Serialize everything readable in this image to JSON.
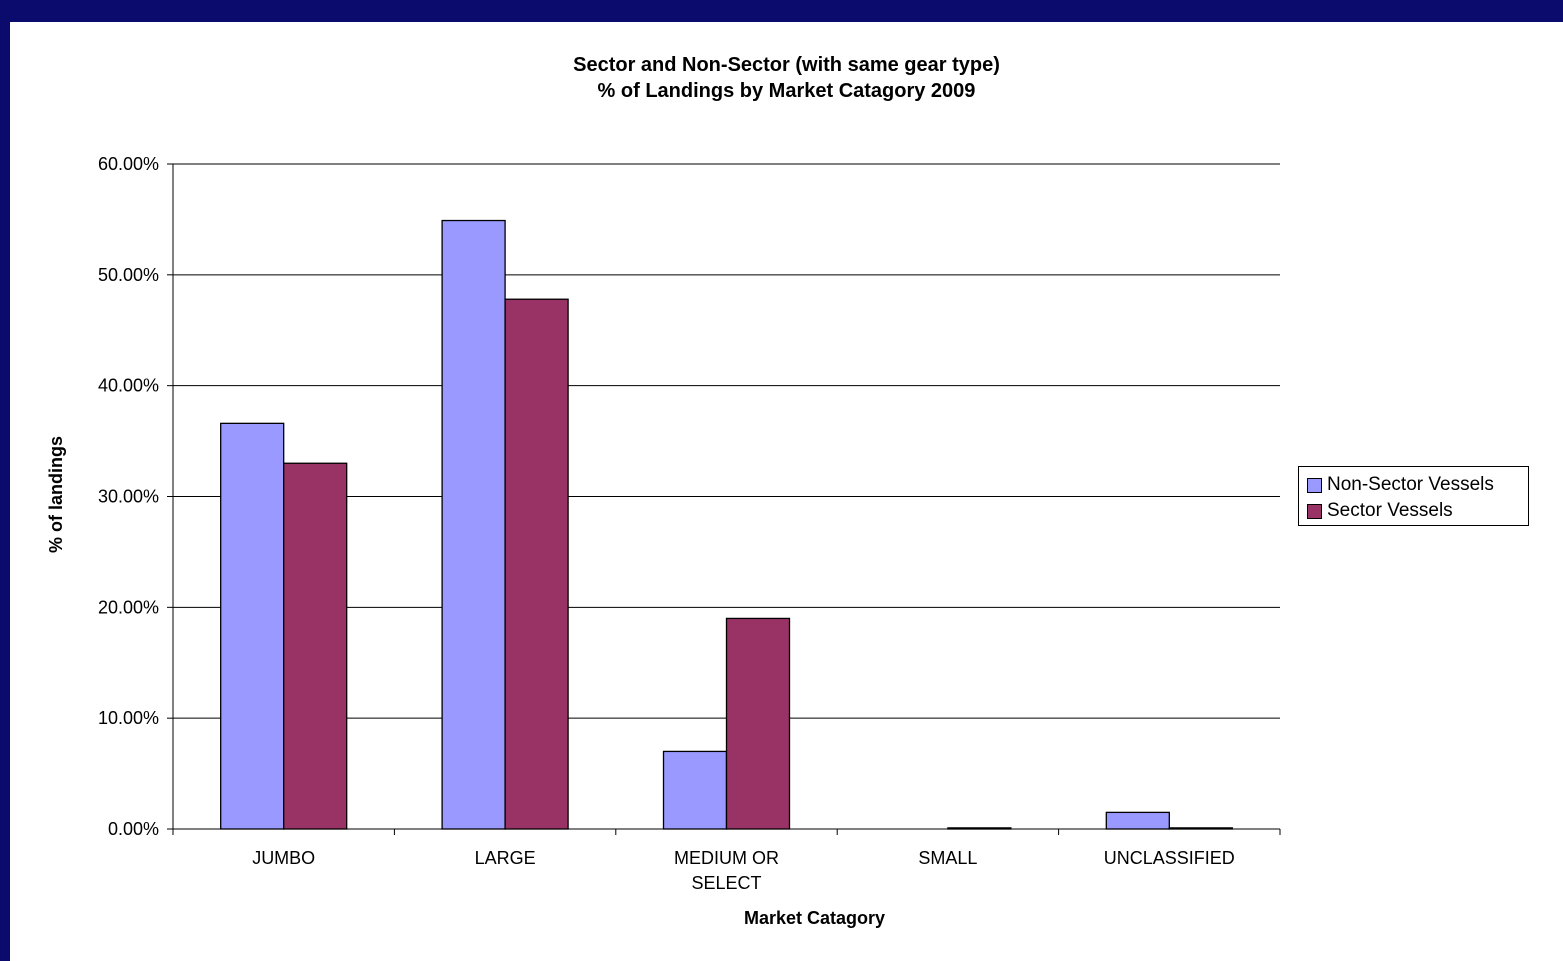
{
  "chart_data": {
    "type": "bar",
    "title_line1": "Sector and Non-Sector (with same gear type)",
    "title_line2": "% of Landings by Market Catagory 2009",
    "xlabel": "Market Catagory",
    "ylabel": "% of landings",
    "ylim": [
      0,
      60
    ],
    "yticks": [
      "0.00%",
      "10.00%",
      "20.00%",
      "30.00%",
      "40.00%",
      "50.00%",
      "60.00%"
    ],
    "categories": [
      "JUMBO",
      "LARGE",
      "MEDIUM OR SELECT",
      "SMALL",
      "UNCLASSIFIED"
    ],
    "category_lines": [
      [
        "JUMBO"
      ],
      [
        "LARGE"
      ],
      [
        "MEDIUM OR",
        "SELECT"
      ],
      [
        "SMALL"
      ],
      [
        "UNCLASSIFIED"
      ]
    ],
    "series": [
      {
        "name": "Non-Sector Vessels",
        "color": "#9999ff",
        "values": [
          36.6,
          54.9,
          7.0,
          0.0,
          1.5
        ]
      },
      {
        "name": "Sector Vessels",
        "color": "#993366",
        "values": [
          33.0,
          47.8,
          19.0,
          0.1,
          0.1
        ]
      }
    ],
    "grid": true,
    "legend_position": "right"
  }
}
